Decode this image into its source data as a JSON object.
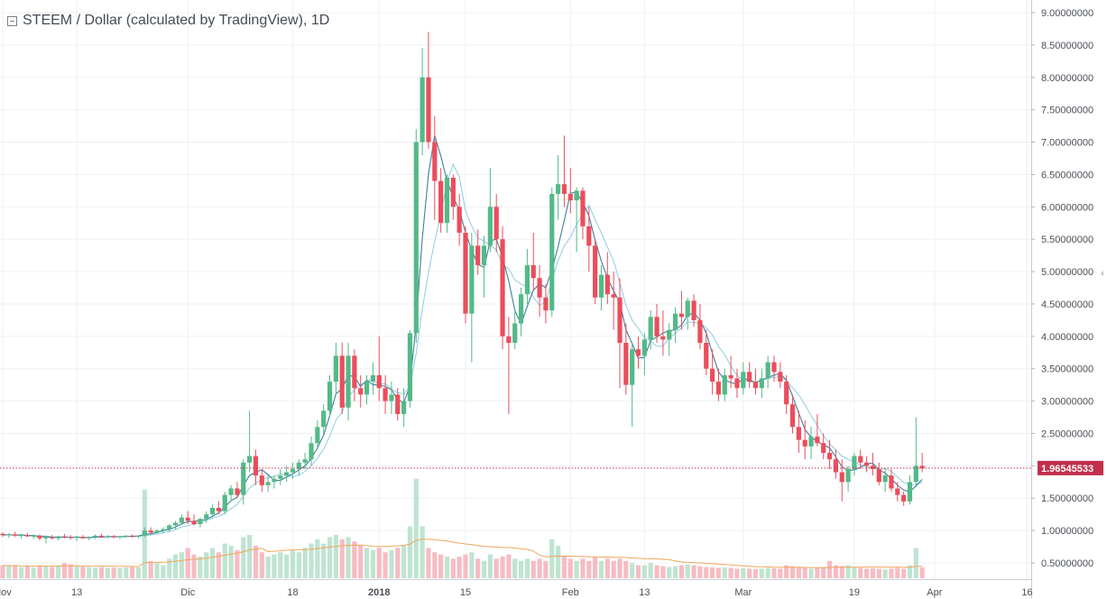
{
  "chart_data": {
    "type": "candlestick",
    "title": "STEEM / Dollar (calculated by TradingView), 1D",
    "xlabel": "",
    "ylabel": "",
    "ylim": [
      0.3,
      9.1
    ],
    "y_ticks": [
      "9.00000000",
      "8.50000000",
      "8.00000000",
      "7.50000000",
      "7.00000000",
      "6.50000000",
      "6.00000000",
      "5.50000000",
      "5.00000000",
      "4.50000000",
      "4.00000000",
      "3.50000000",
      "3.00000000",
      "2.50000000",
      "2.00000000",
      "1.50000000",
      "1.00000000",
      "0.50000000"
    ],
    "x_ticks": [
      "Nov",
      "13",
      "Dic",
      "18",
      "2018",
      "15",
      "Feb",
      "13",
      "Mar",
      "19",
      "Apr",
      "16"
    ],
    "last_price_label": "1.96545533",
    "last_price": 1.965,
    "grid": true,
    "colors": {
      "up": "#53b987",
      "down": "#eb4d5c",
      "up_volume": "#bfe4d1",
      "down_volume": "#f6bcc3",
      "ma_short": "#3d7f9e",
      "ma_long": "#8fcde0",
      "volume_ma": "#f0a65a",
      "last_price_line": "#c22f4a"
    },
    "start_date": "2017-11-01",
    "candles": [
      [
        0.95,
        0.97,
        0.9,
        0.93,
        0.3
      ],
      [
        0.93,
        0.96,
        0.89,
        0.94,
        0.28
      ],
      [
        0.94,
        0.98,
        0.9,
        0.92,
        0.3
      ],
      [
        0.92,
        0.95,
        0.88,
        0.93,
        0.26
      ],
      [
        0.93,
        0.96,
        0.9,
        0.91,
        0.28
      ],
      [
        0.91,
        0.94,
        0.87,
        0.92,
        0.25
      ],
      [
        0.92,
        0.94,
        0.85,
        0.88,
        0.3
      ],
      [
        0.88,
        0.92,
        0.8,
        0.9,
        0.28
      ],
      [
        0.9,
        0.93,
        0.86,
        0.88,
        0.26
      ],
      [
        0.88,
        0.92,
        0.85,
        0.91,
        0.3
      ],
      [
        0.91,
        0.95,
        0.88,
        0.9,
        0.35
      ],
      [
        0.9,
        0.93,
        0.86,
        0.89,
        0.32
      ],
      [
        0.89,
        0.92,
        0.84,
        0.9,
        0.28
      ],
      [
        0.9,
        0.93,
        0.87,
        0.88,
        0.27
      ],
      [
        0.88,
        0.91,
        0.85,
        0.9,
        0.26
      ],
      [
        0.9,
        0.94,
        0.87,
        0.92,
        0.25
      ],
      [
        0.92,
        0.95,
        0.89,
        0.9,
        0.26
      ],
      [
        0.9,
        0.93,
        0.88,
        0.91,
        0.24
      ],
      [
        0.91,
        0.93,
        0.88,
        0.9,
        0.25
      ],
      [
        0.9,
        0.92,
        0.87,
        0.91,
        0.24
      ],
      [
        0.91,
        0.93,
        0.89,
        0.92,
        0.25
      ],
      [
        0.92,
        0.94,
        0.89,
        0.91,
        0.26
      ],
      [
        0.91,
        0.93,
        0.88,
        0.92,
        0.25
      ],
      [
        0.92,
        1.05,
        0.9,
        1.0,
        2.05
      ],
      [
        1.0,
        1.05,
        0.95,
        0.97,
        0.4
      ],
      [
        0.97,
        1.02,
        0.94,
        1.0,
        0.35
      ],
      [
        1.0,
        1.05,
        0.96,
        1.02,
        0.3
      ],
      [
        1.02,
        1.1,
        0.98,
        1.08,
        0.45
      ],
      [
        1.08,
        1.15,
        1.02,
        1.12,
        0.55
      ],
      [
        1.12,
        1.25,
        1.08,
        1.2,
        0.6
      ],
      [
        1.2,
        1.3,
        1.1,
        1.15,
        0.7
      ],
      [
        1.15,
        1.25,
        1.08,
        1.1,
        0.55
      ],
      [
        1.1,
        1.2,
        1.05,
        1.18,
        0.5
      ],
      [
        1.18,
        1.3,
        1.12,
        1.25,
        0.6
      ],
      [
        1.25,
        1.4,
        1.2,
        1.35,
        0.7
      ],
      [
        1.35,
        1.45,
        1.25,
        1.3,
        0.6
      ],
      [
        1.3,
        1.6,
        1.25,
        1.55,
        0.8
      ],
      [
        1.55,
        1.7,
        1.45,
        1.65,
        0.75
      ],
      [
        1.65,
        1.75,
        1.5,
        1.55,
        0.65
      ],
      [
        1.55,
        2.1,
        1.4,
        2.05,
        0.95
      ],
      [
        2.05,
        2.85,
        1.9,
        2.15,
        1.0
      ],
      [
        2.15,
        2.25,
        1.7,
        1.85,
        0.75
      ],
      [
        1.85,
        1.95,
        1.6,
        1.7,
        0.6
      ],
      [
        1.7,
        1.85,
        1.6,
        1.75,
        0.5
      ],
      [
        1.75,
        1.85,
        1.65,
        1.8,
        0.55
      ],
      [
        1.8,
        1.95,
        1.7,
        1.85,
        0.6
      ],
      [
        1.85,
        2.0,
        1.75,
        1.9,
        0.55
      ],
      [
        1.9,
        2.05,
        1.8,
        1.95,
        0.65
      ],
      [
        1.95,
        2.1,
        1.85,
        2.05,
        0.6
      ],
      [
        2.05,
        2.2,
        1.95,
        2.1,
        0.7
      ],
      [
        2.1,
        2.45,
        2.0,
        2.35,
        0.8
      ],
      [
        2.35,
        2.7,
        2.25,
        2.6,
        0.9
      ],
      [
        2.6,
        2.95,
        2.5,
        2.85,
        0.8
      ],
      [
        2.85,
        3.4,
        2.75,
        3.3,
        0.95
      ],
      [
        3.3,
        3.9,
        3.1,
        3.7,
        1.0
      ],
      [
        3.7,
        3.9,
        2.8,
        2.9,
        0.9
      ],
      [
        2.9,
        3.9,
        2.7,
        3.7,
        0.95
      ],
      [
        3.7,
        3.8,
        3.0,
        3.2,
        0.85
      ],
      [
        3.2,
        3.4,
        2.9,
        3.1,
        0.75
      ],
      [
        3.1,
        3.4,
        2.95,
        3.3,
        0.7
      ],
      [
        3.3,
        3.6,
        3.1,
        3.4,
        0.65
      ],
      [
        3.4,
        4.0,
        3.0,
        3.2,
        0.7
      ],
      [
        3.2,
        3.4,
        2.8,
        3.0,
        0.6
      ],
      [
        3.0,
        3.3,
        2.8,
        3.1,
        0.65
      ],
      [
        3.1,
        3.2,
        2.7,
        2.8,
        0.7
      ],
      [
        2.8,
        3.2,
        2.6,
        3.0,
        0.75
      ],
      [
        3.0,
        4.1,
        2.9,
        4.05,
        1.2
      ],
      [
        4.05,
        7.2,
        3.9,
        7.0,
        2.3
      ],
      [
        7.0,
        8.45,
        6.8,
        8.0,
        1.2
      ],
      [
        8.0,
        8.7,
        6.9,
        7.0,
        0.7
      ],
      [
        7.0,
        7.4,
        5.8,
        6.4,
        0.6
      ],
      [
        6.4,
        6.6,
        5.6,
        5.75,
        0.55
      ],
      [
        5.75,
        6.5,
        5.6,
        6.45,
        0.5
      ],
      [
        6.45,
        6.5,
        5.8,
        6.0,
        0.45
      ],
      [
        6.0,
        6.2,
        5.4,
        5.6,
        0.5
      ],
      [
        5.6,
        5.7,
        4.2,
        4.35,
        0.55
      ],
      [
        4.35,
        5.6,
        3.6,
        5.4,
        0.6
      ],
      [
        5.4,
        5.65,
        4.95,
        5.1,
        0.45
      ],
      [
        5.1,
        5.55,
        4.6,
        5.4,
        0.4
      ],
      [
        5.4,
        6.6,
        5.3,
        6.0,
        0.55
      ],
      [
        6.0,
        6.2,
        5.3,
        5.5,
        0.45
      ],
      [
        5.5,
        5.7,
        3.8,
        4.0,
        0.5
      ],
      [
        4.0,
        4.3,
        2.8,
        3.9,
        0.55
      ],
      [
        3.9,
        4.4,
        3.8,
        4.2,
        0.45
      ],
      [
        4.2,
        4.75,
        4.0,
        4.65,
        0.4
      ],
      [
        4.65,
        5.35,
        4.5,
        5.1,
        0.45
      ],
      [
        5.1,
        5.6,
        4.7,
        4.9,
        0.4
      ],
      [
        4.9,
        5.1,
        4.3,
        4.6,
        0.45
      ],
      [
        4.6,
        4.8,
        4.2,
        4.4,
        0.4
      ],
      [
        4.4,
        6.3,
        4.3,
        6.2,
        0.9
      ],
      [
        6.2,
        6.8,
        5.8,
        6.35,
        0.75
      ],
      [
        6.35,
        7.1,
        6.0,
        6.2,
        0.5
      ],
      [
        6.2,
        6.6,
        5.9,
        6.1,
        0.45
      ],
      [
        6.1,
        6.3,
        5.3,
        6.25,
        0.4
      ],
      [
        6.25,
        6.3,
        5.5,
        5.7,
        0.45
      ],
      [
        5.7,
        6.0,
        5.0,
        5.4,
        0.4
      ],
      [
        5.4,
        5.5,
        4.5,
        4.6,
        0.5
      ],
      [
        4.6,
        5.1,
        4.4,
        4.95,
        0.4
      ],
      [
        4.95,
        5.3,
        4.5,
        4.65,
        0.45
      ],
      [
        4.65,
        5.0,
        4.1,
        4.6,
        0.4
      ],
      [
        4.6,
        4.9,
        3.2,
        3.9,
        0.45
      ],
      [
        3.9,
        4.2,
        3.1,
        3.25,
        0.4
      ],
      [
        3.25,
        3.9,
        2.6,
        3.8,
        0.35
      ],
      [
        3.8,
        4.0,
        3.5,
        3.7,
        0.3
      ],
      [
        3.7,
        4.05,
        3.4,
        3.95,
        0.3
      ],
      [
        3.95,
        4.4,
        3.8,
        4.3,
        0.35
      ],
      [
        4.3,
        4.5,
        3.9,
        4.0,
        0.3
      ],
      [
        4.0,
        4.4,
        3.7,
        3.95,
        0.28
      ],
      [
        3.95,
        4.2,
        3.7,
        4.1,
        0.26
      ],
      [
        4.1,
        4.45,
        3.9,
        4.35,
        0.28
      ],
      [
        4.35,
        4.7,
        4.1,
        4.3,
        0.3
      ],
      [
        4.3,
        4.6,
        4.1,
        4.55,
        0.32
      ],
      [
        4.55,
        4.65,
        4.15,
        4.25,
        0.3
      ],
      [
        4.25,
        4.5,
        3.8,
        3.9,
        0.28
      ],
      [
        3.9,
        4.1,
        3.4,
        3.5,
        0.26
      ],
      [
        3.5,
        3.8,
        3.1,
        3.3,
        0.25
      ],
      [
        3.3,
        3.5,
        3.0,
        3.1,
        0.24
      ],
      [
        3.1,
        3.5,
        3.0,
        3.4,
        0.25
      ],
      [
        3.4,
        3.7,
        3.2,
        3.35,
        0.24
      ],
      [
        3.35,
        3.5,
        3.05,
        3.2,
        0.22
      ],
      [
        3.2,
        3.6,
        3.1,
        3.45,
        0.23
      ],
      [
        3.45,
        3.6,
        3.2,
        3.3,
        0.22
      ],
      [
        3.3,
        3.5,
        3.1,
        3.2,
        0.21
      ],
      [
        3.2,
        3.5,
        3.05,
        3.35,
        0.22
      ],
      [
        3.35,
        3.7,
        3.2,
        3.6,
        0.24
      ],
      [
        3.6,
        3.7,
        3.3,
        3.45,
        0.23
      ],
      [
        3.45,
        3.6,
        3.2,
        3.3,
        0.22
      ],
      [
        3.3,
        3.4,
        2.8,
        2.95,
        0.3
      ],
      [
        2.95,
        3.1,
        2.5,
        2.6,
        0.28
      ],
      [
        2.6,
        2.85,
        2.2,
        2.4,
        0.26
      ],
      [
        2.4,
        2.7,
        2.1,
        2.3,
        0.25
      ],
      [
        2.3,
        2.6,
        2.1,
        2.45,
        0.22
      ],
      [
        2.45,
        2.8,
        2.3,
        2.35,
        0.24
      ],
      [
        2.35,
        2.5,
        2.1,
        2.2,
        0.26
      ],
      [
        2.2,
        2.4,
        1.95,
        2.1,
        0.4
      ],
      [
        2.1,
        2.25,
        1.8,
        1.9,
        0.3
      ],
      [
        1.9,
        2.1,
        1.45,
        1.75,
        0.28
      ],
      [
        1.75,
        2.0,
        1.6,
        1.95,
        0.3
      ],
      [
        1.95,
        2.2,
        1.85,
        2.15,
        0.26
      ],
      [
        2.15,
        2.25,
        1.95,
        2.05,
        0.24
      ],
      [
        2.05,
        2.15,
        1.9,
        2.0,
        0.22
      ],
      [
        2.0,
        2.2,
        1.85,
        1.95,
        0.23
      ],
      [
        1.95,
        2.05,
        1.7,
        1.75,
        0.22
      ],
      [
        1.75,
        1.95,
        1.6,
        1.85,
        0.2
      ],
      [
        1.85,
        1.95,
        1.6,
        1.65,
        0.22
      ],
      [
        1.65,
        1.75,
        1.45,
        1.55,
        0.24
      ],
      [
        1.55,
        1.6,
        1.38,
        1.45,
        0.22
      ],
      [
        1.45,
        1.85,
        1.4,
        1.75,
        0.3
      ],
      [
        1.75,
        2.75,
        1.7,
        2.0,
        0.7
      ],
      [
        2.0,
        2.2,
        1.9,
        1.96,
        0.25
      ]
    ]
  }
}
